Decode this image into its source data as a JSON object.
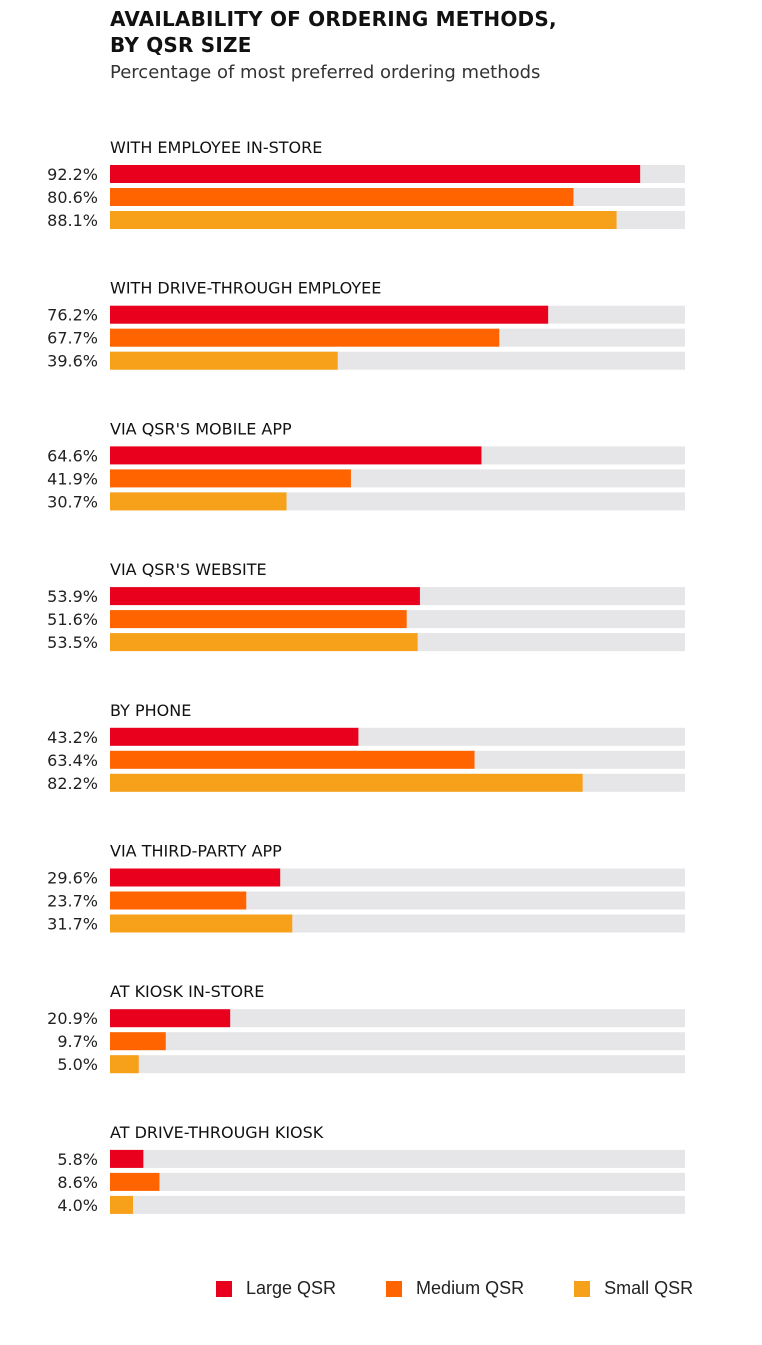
{
  "chart_data": {
    "type": "bar",
    "orientation": "horizontal",
    "title_lines": [
      "AVAILABILITY OF ORDERING METHODS,",
      "BY QSR SIZE"
    ],
    "subtitle": "Percentage of most preferred ordering methods",
    "xlim": [
      0,
      100
    ],
    "grid": false,
    "legend_position": "bottom",
    "categories": [
      "WITH EMPLOYEE IN-STORE",
      "WITH DRIVE-THROUGH EMPLOYEE",
      "VIA QSR'S MOBILE APP",
      "VIA QSR'S WEBSITE",
      "BY PHONE",
      "VIA THIRD-PARTY APP",
      "AT KIOSK IN-STORE",
      "AT DRIVE-THROUGH KIOSK"
    ],
    "series": [
      {
        "name": "Large QSR",
        "color": "#e8001c",
        "values": [
          92.2,
          76.2,
          64.6,
          53.9,
          43.2,
          29.6,
          20.9,
          5.8
        ],
        "labels": [
          "92.2%",
          "76.2%",
          "64.6%",
          "53.9%",
          "43.2%",
          "29.6%",
          "20.9%",
          "5.8%"
        ]
      },
      {
        "name": "Medium QSR",
        "color": "#ff6400",
        "values": [
          80.6,
          67.7,
          41.9,
          51.6,
          63.4,
          23.7,
          9.7,
          8.6
        ],
        "labels": [
          "80.6%",
          "67.7%",
          "41.9%",
          "51.6%",
          "63.4%",
          "23.7%",
          "9.7%",
          "8.6%"
        ]
      },
      {
        "name": "Small QSR",
        "color": "#f7a11a",
        "values": [
          88.1,
          39.6,
          30.7,
          53.5,
          82.2,
          31.7,
          5.0,
          4.0
        ],
        "labels": [
          "88.1%",
          "39.6%",
          "30.7%",
          "53.5%",
          "82.2%",
          "31.7%",
          "5.0%",
          "4.0%"
        ]
      }
    ],
    "track_color": "#e6e6e8"
  }
}
